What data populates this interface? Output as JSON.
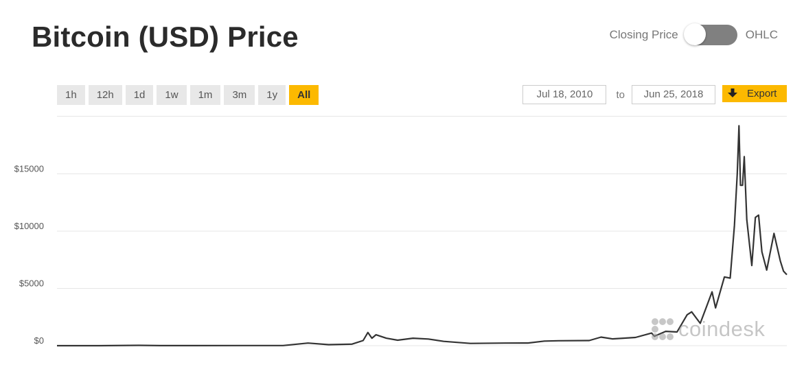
{
  "header": {
    "title": "Bitcoin (USD) Price",
    "toggle_left_label": "Closing Price",
    "toggle_right_label": "OHLC"
  },
  "ranges": [
    "1h",
    "12h",
    "1d",
    "1w",
    "1m",
    "3m",
    "1y",
    "All"
  ],
  "active_range": "All",
  "dates": {
    "from": "Jul 18, 2010",
    "to_label": "to",
    "to": "Jun 25, 2018"
  },
  "export_label": "Export",
  "watermark": "coindesk",
  "colors": {
    "accent": "#fcb900",
    "line": "#333333",
    "grid": "#e6e6e6",
    "toggle": "#808080"
  },
  "chart_data": {
    "type": "line",
    "title": "",
    "xlabel": "",
    "ylabel": "",
    "x_range": [
      "2010-07-18",
      "2018-06-25"
    ],
    "ylim": [
      0,
      18000
    ],
    "y_ticks": [
      0,
      5000,
      10000,
      15000
    ],
    "y_tick_labels": [
      "$0",
      "$5000",
      "$10000",
      "$15000"
    ],
    "grid": true,
    "legend": "none",
    "series": [
      {
        "points": [
          [
            "2010-07-18",
            0.1
          ],
          [
            "2011-01-01",
            0.3
          ],
          [
            "2011-06-08",
            29
          ],
          [
            "2011-09-01",
            8
          ],
          [
            "2012-01-01",
            5
          ],
          [
            "2012-08-01",
            11
          ],
          [
            "2013-01-01",
            13
          ],
          [
            "2013-04-10",
            230
          ],
          [
            "2013-07-01",
            90
          ],
          [
            "2013-10-01",
            130
          ],
          [
            "2013-11-15",
            450
          ],
          [
            "2013-12-04",
            1150
          ],
          [
            "2013-12-20",
            650
          ],
          [
            "2014-01-05",
            950
          ],
          [
            "2014-02-15",
            650
          ],
          [
            "2014-04-01",
            480
          ],
          [
            "2014-06-01",
            650
          ],
          [
            "2014-08-01",
            580
          ],
          [
            "2014-10-01",
            380
          ],
          [
            "2015-01-15",
            200
          ],
          [
            "2015-06-01",
            230
          ],
          [
            "2015-09-01",
            235
          ],
          [
            "2015-11-05",
            400
          ],
          [
            "2016-01-01",
            430
          ],
          [
            "2016-05-01",
            450
          ],
          [
            "2016-06-17",
            750
          ],
          [
            "2016-08-01",
            590
          ],
          [
            "2016-11-01",
            720
          ],
          [
            "2017-01-04",
            1100
          ],
          [
            "2017-01-15",
            820
          ],
          [
            "2017-03-01",
            1250
          ],
          [
            "2017-04-15",
            1200
          ],
          [
            "2017-05-25",
            2700
          ],
          [
            "2017-06-12",
            2950
          ],
          [
            "2017-07-16",
            1950
          ],
          [
            "2017-08-10",
            3400
          ],
          [
            "2017-09-01",
            4700
          ],
          [
            "2017-09-15",
            3300
          ],
          [
            "2017-10-20",
            6000
          ],
          [
            "2017-11-12",
            5900
          ],
          [
            "2017-11-29",
            10500
          ],
          [
            "2017-12-10",
            15000
          ],
          [
            "2017-12-17",
            19200
          ],
          [
            "2017-12-23",
            14000
          ],
          [
            "2017-12-31",
            14000
          ],
          [
            "2018-01-07",
            16500
          ],
          [
            "2018-01-17",
            11000
          ],
          [
            "2018-02-06",
            7000
          ],
          [
            "2018-02-20",
            11200
          ],
          [
            "2018-03-05",
            11400
          ],
          [
            "2018-03-18",
            8200
          ],
          [
            "2018-04-06",
            6600
          ],
          [
            "2018-05-05",
            9800
          ],
          [
            "2018-05-30",
            7400
          ],
          [
            "2018-06-12",
            6500
          ],
          [
            "2018-06-25",
            6200
          ]
        ]
      }
    ]
  }
}
